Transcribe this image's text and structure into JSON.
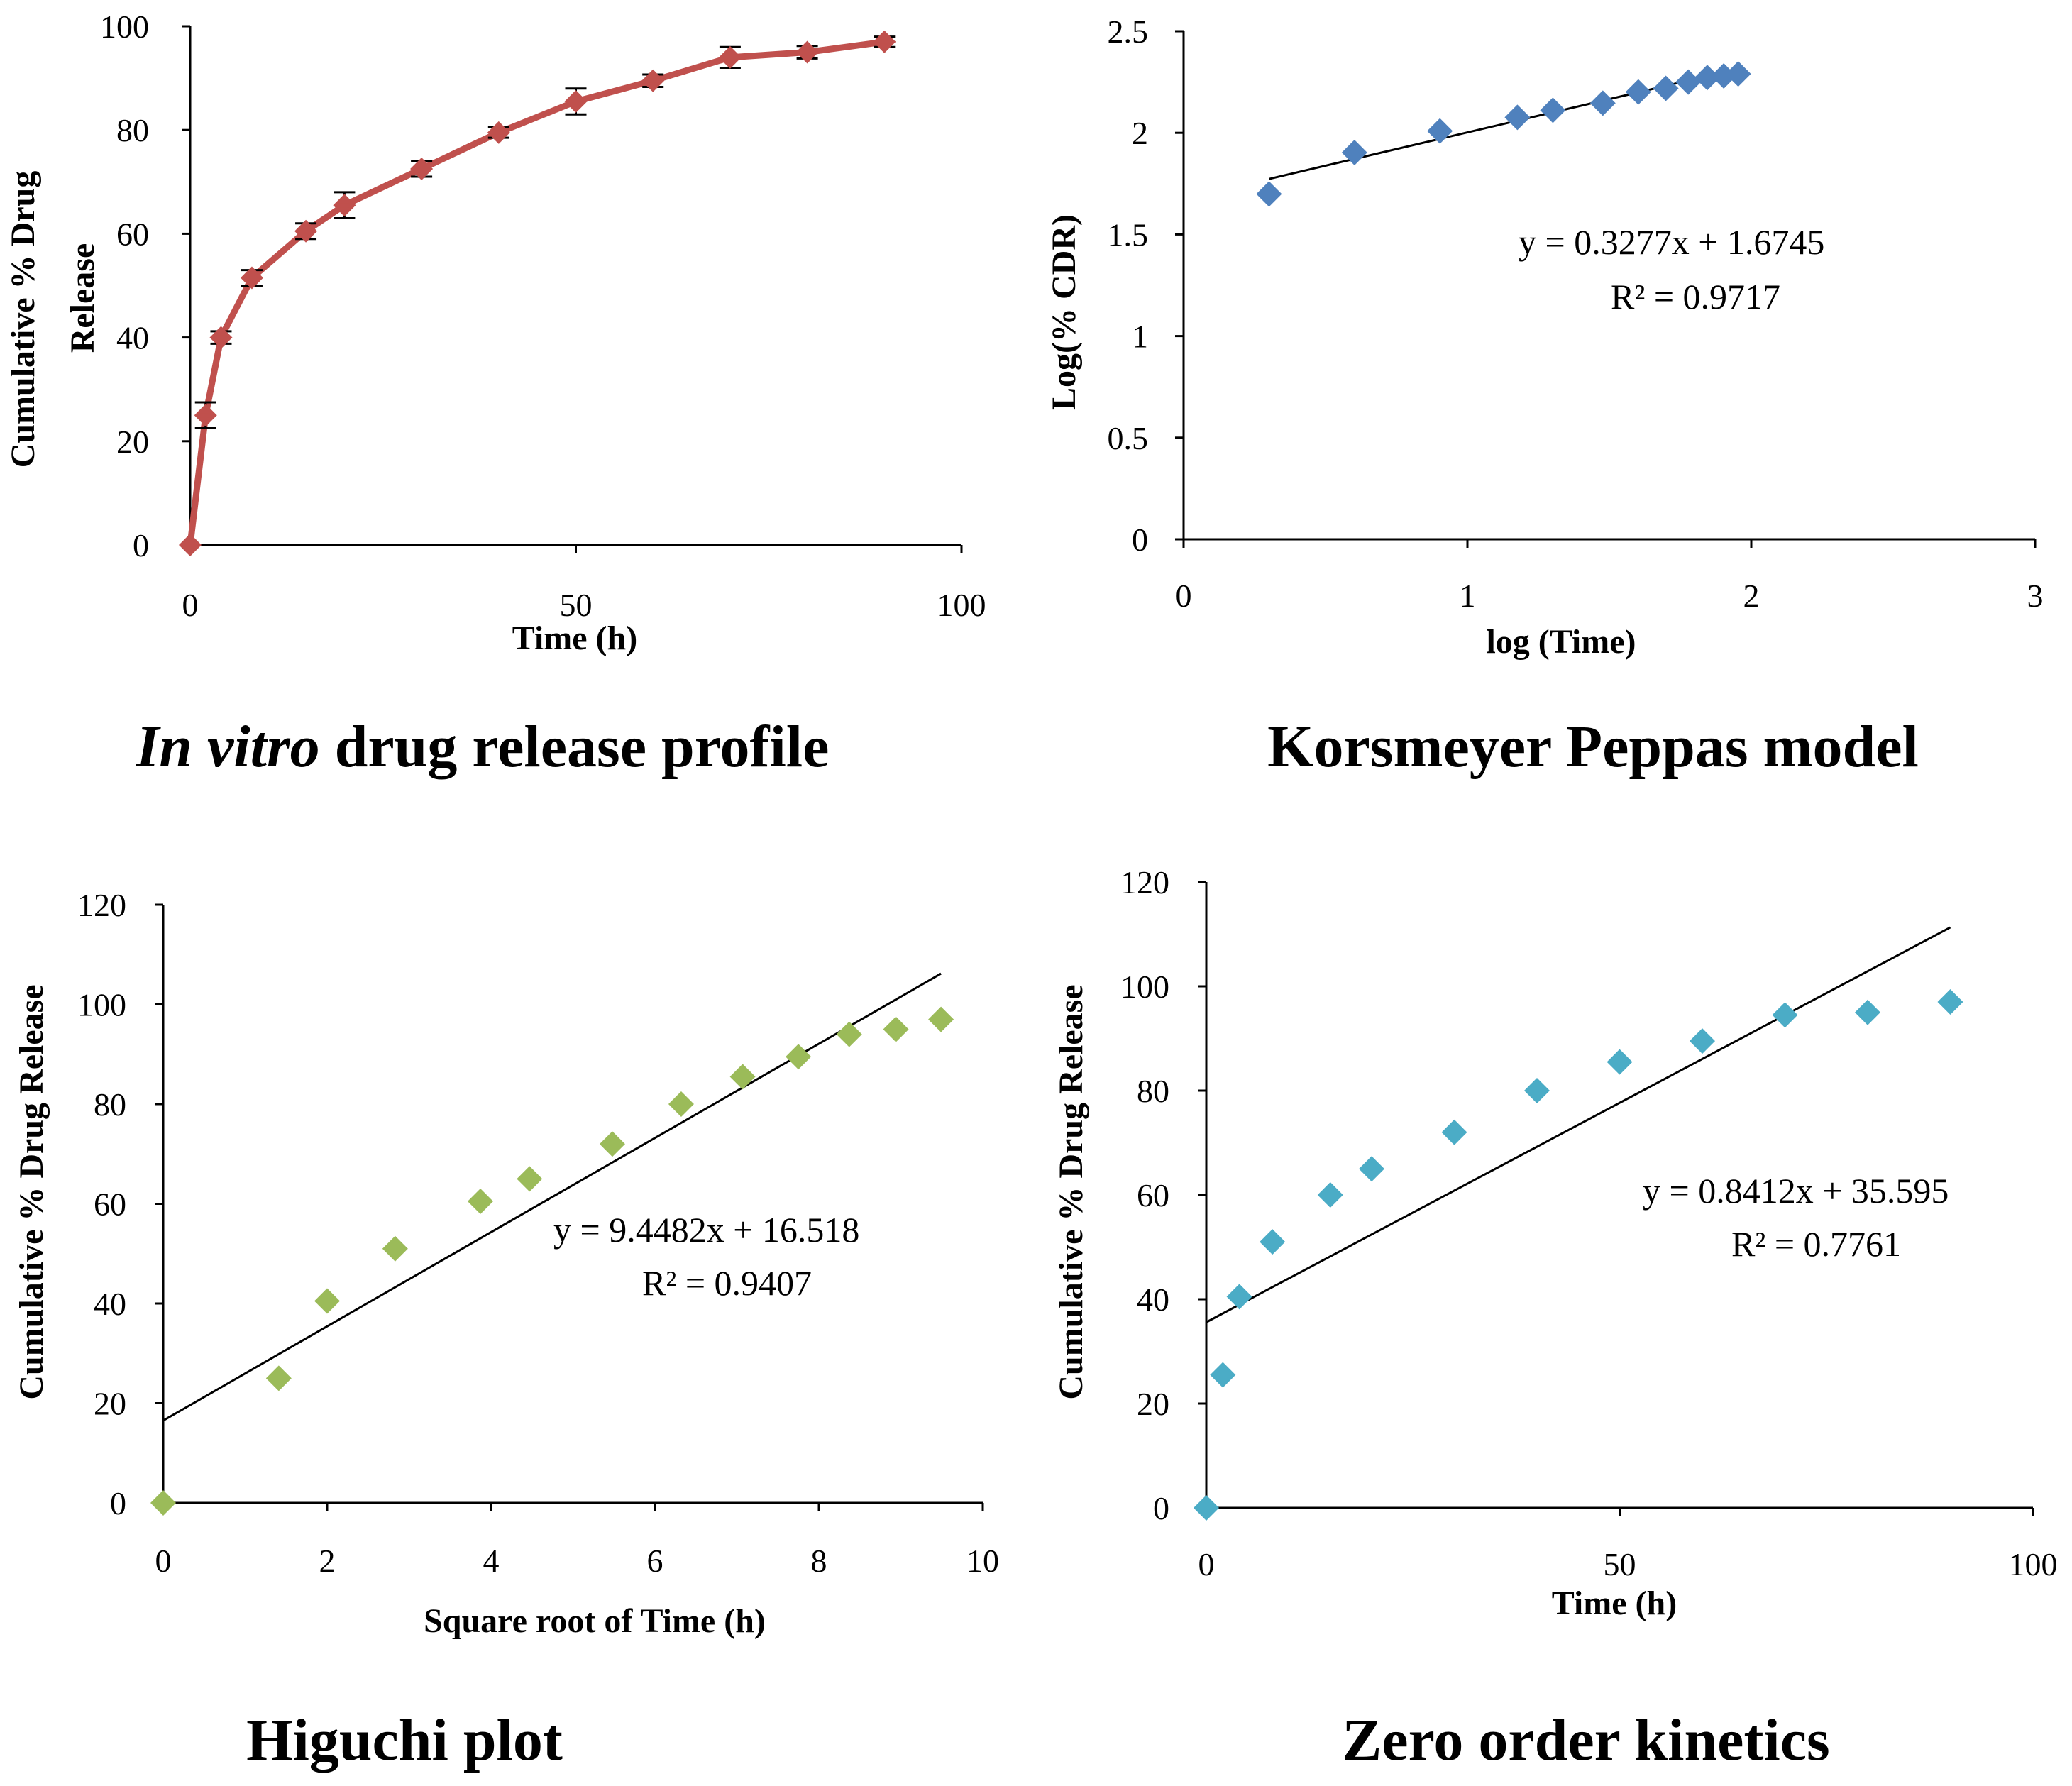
{
  "chart_data": [
    {
      "id": "release",
      "type": "line",
      "caption_italic": "In vitro",
      "caption_rest": " drug release profile",
      "xlabel": "Time (h)",
      "ylabel_line1": "Cumulative  % Drug",
      "ylabel_line2": "Release",
      "xlim": [
        0,
        100
      ],
      "ylim": [
        0,
        100
      ],
      "xticks": [
        0,
        50,
        100
      ],
      "yticks": [
        0,
        20,
        40,
        60,
        80,
        100
      ],
      "color": "#C0504D",
      "series": [
        {
          "name": "Cumulative % drug release",
          "x": [
            0,
            2,
            4,
            8,
            15,
            20,
            30,
            40,
            50,
            60,
            70,
            80,
            90
          ],
          "y": [
            0,
            25,
            40,
            51.5,
            60.5,
            65.5,
            72.5,
            79.5,
            85.5,
            89.5,
            94,
            95,
            97
          ],
          "err": [
            0,
            2.5,
            1.2,
            1.5,
            1.5,
            2.5,
            1.5,
            1,
            2.5,
            1.2,
            2,
            1.2,
            1
          ]
        }
      ]
    },
    {
      "id": "peppas",
      "type": "scatter",
      "caption": "Korsmeyer Peppas model",
      "xlabel": "log (Time)",
      "ylabel": "Log(% CDR)",
      "xlim": [
        0,
        3
      ],
      "ylim": [
        0,
        2.5
      ],
      "xticks": [
        0,
        1,
        2,
        3
      ],
      "yticks": [
        0,
        0.5,
        1,
        1.5,
        2,
        2.5
      ],
      "color": "#4F81BD",
      "x": [
        0.301,
        0.602,
        0.903,
        1.176,
        1.301,
        1.477,
        1.602,
        1.699,
        1.778,
        1.845,
        1.903,
        1.954
      ],
      "y": [
        1.699,
        1.903,
        2.009,
        2.076,
        2.111,
        2.146,
        2.201,
        2.219,
        2.25,
        2.272,
        2.28,
        2.29
      ],
      "fit": {
        "slope": 0.3277,
        "intercept": 1.6745,
        "x_range": [
          0.301,
          1.954
        ]
      },
      "equation": "y = 0.3277x   + 1.6745",
      "r2": "R² = 0.9717"
    },
    {
      "id": "higuchi",
      "type": "scatter",
      "caption": "Higuchi plot",
      "xlabel": "Square root of Time (h)",
      "ylabel": "Cumulative  % Drug Release",
      "xlim": [
        0,
        10
      ],
      "ylim": [
        0,
        120
      ],
      "xticks": [
        0,
        2,
        4,
        6,
        8,
        10
      ],
      "yticks": [
        0,
        20,
        40,
        60,
        80,
        100,
        120
      ],
      "color": "#9BBB59",
      "x": [
        0,
        1.41,
        2,
        2.83,
        3.87,
        4.47,
        5.48,
        6.32,
        7.07,
        7.75,
        8.37,
        8.94,
        9.49
      ],
      "y": [
        0,
        25,
        40.5,
        51,
        60.5,
        65,
        72,
        80,
        85.5,
        89.5,
        94,
        95,
        97
      ],
      "fit": {
        "slope": 9.4482,
        "intercept": 16.518,
        "x_range": [
          0,
          9.49
        ]
      },
      "equation": "y = 9.4482x   + 16.518",
      "r2": "R² = 0.9407"
    },
    {
      "id": "zero",
      "type": "scatter",
      "caption": "Zero order kinetics",
      "xlabel": "Time (h)",
      "ylabel": "Cumulative  % Drug Release",
      "xlim": [
        0,
        100
      ],
      "ylim": [
        0,
        120
      ],
      "xticks": [
        0,
        50,
        100
      ],
      "yticks": [
        0,
        20,
        40,
        60,
        80,
        100,
        120
      ],
      "color": "#4BACC6",
      "x": [
        0,
        2,
        4,
        8,
        15,
        20,
        30,
        40,
        50,
        60,
        70,
        80,
        90
      ],
      "y": [
        0,
        25.5,
        40.5,
        51,
        60,
        65,
        72,
        80,
        85.5,
        89.5,
        94.5,
        95,
        97
      ],
      "fit": {
        "slope": 0.8412,
        "intercept": 35.595,
        "x_range": [
          0,
          90
        ]
      },
      "equation": "y = 0.8412x   + 35.595",
      "r2": "R² = 0.7761"
    }
  ]
}
